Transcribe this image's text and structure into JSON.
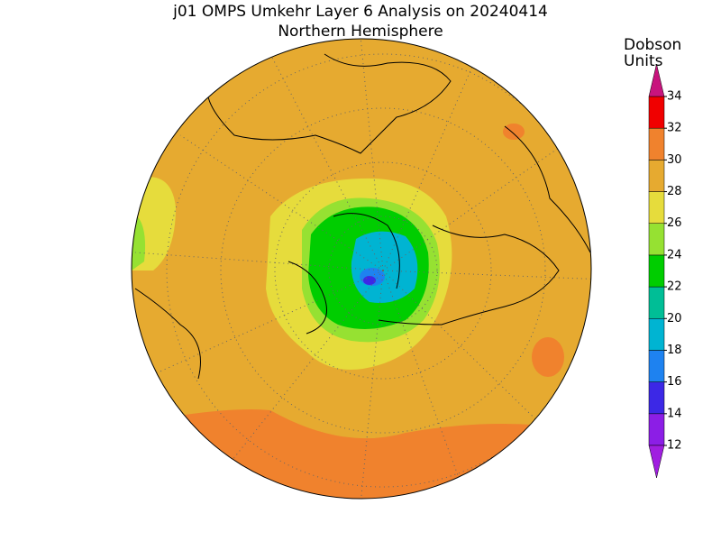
{
  "title": "j01 OMPS Umkehr Layer 6 Analysis on 20240414",
  "subtitle": "Northern Hemisphere",
  "colorbar": {
    "label_lines": [
      "Dobson",
      "Units"
    ],
    "ticks": [
      12,
      14,
      16,
      18,
      20,
      22,
      24,
      26,
      28,
      30,
      32,
      34
    ],
    "colors": [
      "#8c1ee6",
      "#3c28e6",
      "#1e82f0",
      "#00b4d2",
      "#00be96",
      "#00cd00",
      "#96e132",
      "#e6dc3c",
      "#e6aa30",
      "#f0822d",
      "#f00000"
    ],
    "under_color": "#a01ee0",
    "over_color": "#c8147d"
  }
}
